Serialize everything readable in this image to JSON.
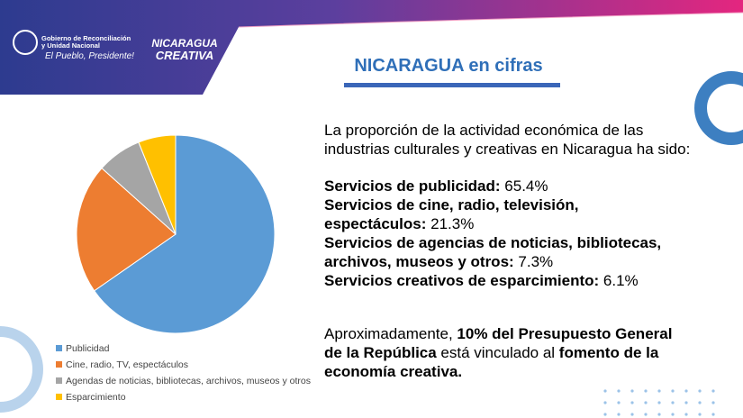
{
  "header": {
    "org": [
      "Gobierno de Reconciliación",
      "y Unidad Nacional"
    ],
    "motto": "El Pueblo, Presidente!",
    "brand": [
      "NICARAGUA",
      "CREATIVA"
    ]
  },
  "title": "NICARAGUA en cifras",
  "intro": [
    "La proporción de la actividad económica de las",
    "industrias culturales y creativas en Nicaragua ha sido:"
  ],
  "items": [
    [
      {
        "text": "Servicios de publicidad: ",
        "bold": true
      },
      {
        "text": "65.4%",
        "bold": false
      }
    ],
    [
      {
        "text": "Servicios de cine, radio, televisión,",
        "bold": true
      }
    ],
    [
      {
        "text": "espectáculos: ",
        "bold": true
      },
      {
        "text": "21.3%",
        "bold": false
      }
    ],
    [
      {
        "text": "Servicios de agencias de noticias, bibliotecas,",
        "bold": true
      }
    ],
    [
      {
        "text": "archivos, museos y otros: ",
        "bold": true
      },
      {
        "text": "7.3%",
        "bold": false
      }
    ],
    [
      {
        "text": "Servicios creativos de esparcimiento: ",
        "bold": true
      },
      {
        "text": "6.1%",
        "bold": false
      }
    ]
  ],
  "note": [
    [
      {
        "text": "Aproximadamente, ",
        "bold": false
      },
      {
        "text": "10% del Presupuesto General",
        "bold": true
      }
    ],
    [
      {
        "text": "de la República",
        "bold": true
      },
      {
        "text": " está vinculado al ",
        "bold": false
      },
      {
        "text": "fomento de la",
        "bold": true
      }
    ],
    [
      {
        "text": "economía creativa.",
        "bold": true
      }
    ]
  ],
  "chart_data": {
    "type": "pie",
    "categories": [
      "Publicidad",
      "Cine, radio, TV, espectáculos",
      "Agendas de noticias, bibliotecas, archivos, museos y otros",
      "Esparcimiento"
    ],
    "values": [
      65.4,
      21.3,
      7.3,
      6.1
    ],
    "colors": [
      "#5b9bd5",
      "#ed7d31",
      "#a5a5a5",
      "#ffc000"
    ],
    "legend": "bottom-left"
  }
}
